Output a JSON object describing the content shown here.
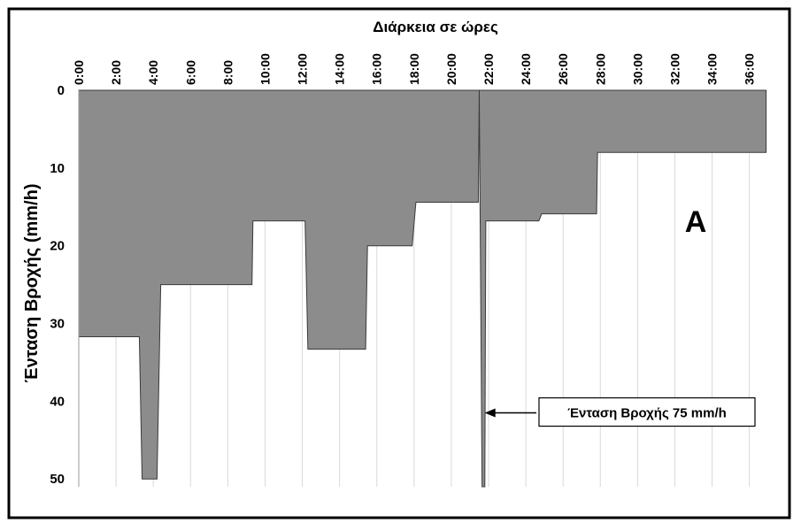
{
  "chart_data": {
    "type": "area",
    "title": "",
    "xlabel": "Διάρκεια σε ώρες",
    "ylabel": "Ένταση Βροχής (mm/h)",
    "x_axis_position": "top",
    "y_axis_inverted": true,
    "xlim": [
      0,
      37.3
    ],
    "ylim": [
      0,
      51
    ],
    "x_ticks": [
      "0:00",
      "2:00",
      "4:00",
      "6:00",
      "8:00",
      "10:00",
      "12:00",
      "14:00",
      "16:00",
      "18:00",
      "20:00",
      "22:00",
      "24:00",
      "26:00",
      "28:00",
      "30:00",
      "32:00",
      "34:00",
      "36:00"
    ],
    "y_ticks": [
      0,
      10,
      20,
      30,
      40,
      50
    ],
    "grid": "vertical",
    "series": [
      {
        "color": "#8c8c8c",
        "x": [
          0,
          3.25,
          3.4,
          4.2,
          4.4,
          9.3,
          9.35,
          12.15,
          12.3,
          15.4,
          15.5,
          17.9,
          18.1,
          21.45,
          21.5,
          21.65,
          21.8,
          21.85,
          24.7,
          24.85,
          27.8,
          27.85,
          36.9
        ],
        "y": [
          31.7,
          31.7,
          50,
          50,
          25,
          25,
          16.8,
          16.8,
          33.3,
          33.3,
          20,
          20,
          14.4,
          14.4,
          0,
          51,
          51,
          16.8,
          16.8,
          15.9,
          15.9,
          8,
          8
        ]
      }
    ],
    "panel_label": "A",
    "annotation": {
      "text": "Ένταση Βροχής 75 mm/h",
      "x": 21.7,
      "y": 41.5
    }
  }
}
